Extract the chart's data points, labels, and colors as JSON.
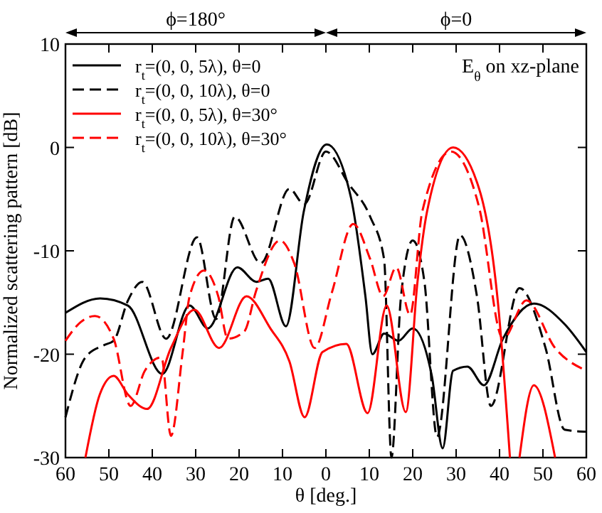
{
  "chart_data": {
    "type": "line",
    "xlabel": "θ [deg.]",
    "ylabel": "Normalized scattering pattern [dB]",
    "annotations": [
      "ϕ=180°",
      "ϕ=0",
      "E$_{θ}$ on xz-plane"
    ],
    "xlim": [
      -60,
      60
    ],
    "xticks": [
      {
        "value": -60,
        "label": "60"
      },
      {
        "value": -50,
        "label": "50"
      },
      {
        "value": -40,
        "label": "40"
      },
      {
        "value": -30,
        "label": "30"
      },
      {
        "value": -20,
        "label": "20"
      },
      {
        "value": -10,
        "label": "10"
      },
      0,
      10,
      20,
      30,
      40,
      50,
      60
    ],
    "ylim": [
      -30,
      10
    ],
    "yticks": [
      -30,
      -20,
      -10,
      0,
      10
    ],
    "grid": false,
    "legend": "top left",
    "series": [
      {
        "name": "r$_{t}$=(0, 0, 5λ), θ=0",
        "color": "#000000",
        "line_style": "solid",
        "x": [
          -60,
          -52,
          -45.6,
          -37.7,
          -31.4,
          -27.2,
          -20.4,
          -16,
          -13.3,
          -9.2,
          -5.1,
          0.2,
          5.8,
          9.1,
          10.7,
          13.4,
          16.7,
          20,
          24.4,
          26.9,
          29.3,
          32.6,
          36.4,
          40.8,
          47.9,
          55,
          60
        ],
        "values": [
          -16,
          -14.6,
          -15.3,
          -21.9,
          -15.3,
          -17.5,
          -11.6,
          -13,
          -12.7,
          -17.3,
          -6.2,
          0.3,
          -4.9,
          -14.4,
          -20,
          -18,
          -18.7,
          -17.5,
          -22.1,
          -29.1,
          -21.6,
          -21.2,
          -23,
          -18.5,
          -15.1,
          -17.1,
          -19.8
        ]
      },
      {
        "name": "r$_{t}$=(0, 0, 10λ), θ=0",
        "color": "#000000",
        "line_style": "dashed",
        "x": [
          -60,
          -55.4,
          -51,
          -48.9,
          -45.6,
          -42.3,
          -36.8,
          -29.7,
          -25.3,
          -21,
          -15,
          -8.4,
          -5,
          0,
          5.2,
          10.2,
          13.4,
          15.1,
          17.3,
          20,
          22.7,
          25.6,
          30.9,
          34.8,
          38,
          44.6,
          50.6,
          55,
          60
        ],
        "values": [
          -26.1,
          -20.3,
          -19.1,
          -18.7,
          -14.8,
          -13,
          -18.5,
          -8.7,
          -16.6,
          -6.7,
          -11.2,
          -4,
          -5.5,
          -0.4,
          -3.5,
          -6.7,
          -10.8,
          -30,
          -14.4,
          -9,
          -13,
          -28,
          -8.5,
          -14.4,
          -25,
          -13.6,
          -19.4,
          -27.3,
          -27.5
        ]
      },
      {
        "name": "r$_{t}$=(0, 0, 5λ), θ=30°",
        "color": "#ff0000",
        "line_style": "solid",
        "x": [
          -55.4,
          -52.1,
          -48.9,
          -45.6,
          -41.2,
          -35.7,
          -30.3,
          -24.6,
          -18.3,
          -12.8,
          -8.4,
          -4.9,
          -0.8,
          4.7,
          9.6,
          14,
          18.4,
          21.1,
          23.3,
          29.3,
          35.3,
          39.7,
          42.4,
          43.5,
          44.6,
          47.9,
          52.8
        ],
        "values": [
          -30,
          -23.9,
          -22.1,
          -23.9,
          -25.3,
          -19.4,
          -15.7,
          -19.4,
          -14.4,
          -17.5,
          -20.7,
          -26.1,
          -19.8,
          -19,
          -25.7,
          -15.3,
          -25.6,
          -13,
          -6.2,
          0,
          -4,
          -15.3,
          -30,
          null,
          -30,
          -23,
          -30
        ]
      },
      {
        "name": "r$_{t}$=(0, 0, 10λ), θ=30°",
        "color": "#ff0000",
        "line_style": "dashed",
        "x": [
          -60,
          -56.5,
          -53.2,
          -48.9,
          -45,
          -41.7,
          -37.9,
          -35.7,
          -33,
          -31.4,
          -28.1,
          -24.8,
          -22.6,
          -18.8,
          -16.1,
          -10.6,
          -7.3,
          -2.6,
          1.4,
          6.3,
          10.2,
          13.2,
          16.2,
          19.4,
          22.2,
          28.8,
          35.3,
          40.8,
          46.2,
          52.8,
          60
        ],
        "values": [
          -18.7,
          -16.9,
          -16.3,
          -18.5,
          -25,
          -21.6,
          -20.3,
          -27.9,
          -19.8,
          -14.4,
          -11.9,
          -14.4,
          -18.5,
          -17.8,
          -13.9,
          -9,
          -11.2,
          -19.4,
          -14,
          -7.4,
          -10.8,
          -14.4,
          -11.6,
          -16.2,
          -6.2,
          -0.4,
          -5.8,
          -18.5,
          -14.8,
          -19.4,
          -21.6
        ]
      }
    ]
  }
}
